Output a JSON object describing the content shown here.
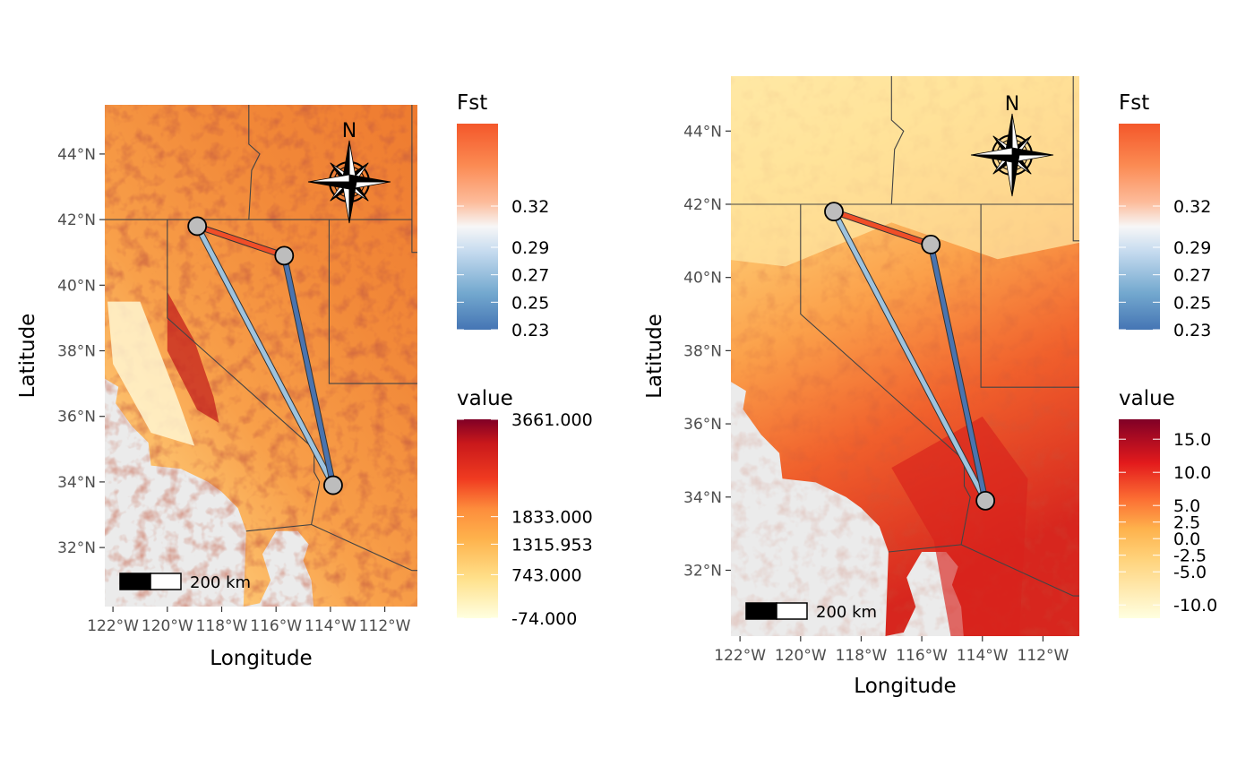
{
  "panels": [
    {
      "id": "elevation",
      "x_label": "Longitude",
      "y_label": "Latitude",
      "lon_range": [
        -122.3,
        -110.8
      ],
      "lat_range": [
        30.2,
        45.5
      ],
      "x_ticks": [
        "122°W",
        "120°W",
        "118°W",
        "116°W",
        "114°W",
        "112°W"
      ],
      "x_tick_values": [
        -122,
        -120,
        -118,
        -116,
        -114,
        -112
      ],
      "y_ticks": [
        "32°N",
        "34°N",
        "36°N",
        "38°N",
        "40°N",
        "42°N",
        "44°N"
      ],
      "y_tick_values": [
        32,
        34,
        36,
        38,
        40,
        42,
        44
      ],
      "scale_bar_label": "200 km",
      "north_label": "N",
      "legend_fst": {
        "title": "Fst",
        "ticks": [
          "0.32",
          "0.29",
          "0.27",
          "0.25",
          "0.23"
        ],
        "tick_values": [
          0.32,
          0.29,
          0.27,
          0.25,
          0.23
        ],
        "range": [
          0.23,
          0.38
        ]
      },
      "legend_value": {
        "title": "value",
        "ticks": [
          "3661.000",
          "1833.000",
          "1315.953",
          "743.000",
          "-74.000"
        ],
        "tick_values": [
          3661,
          1833,
          1315.953,
          743,
          -74
        ],
        "range": [
          -74,
          3661
        ]
      },
      "raster_style": "elevation"
    },
    {
      "id": "temperature",
      "x_label": "Longitude",
      "y_label": "Latitude",
      "lon_range": [
        -122.3,
        -110.8
      ],
      "lat_range": [
        30.2,
        45.5
      ],
      "x_ticks": [
        "122°W",
        "120°W",
        "118°W",
        "116°W",
        "114°W",
        "112°W"
      ],
      "x_tick_values": [
        -122,
        -120,
        -118,
        -116,
        -114,
        -112
      ],
      "y_ticks": [
        "32°N",
        "34°N",
        "36°N",
        "38°N",
        "40°N",
        "42°N",
        "44°N"
      ],
      "y_tick_values": [
        32,
        34,
        36,
        38,
        40,
        42,
        44
      ],
      "scale_bar_label": "200 km",
      "north_label": "N",
      "legend_fst": {
        "title": "Fst",
        "ticks": [
          "0.32",
          "0.29",
          "0.27",
          "0.25",
          "0.23"
        ],
        "tick_values": [
          0.32,
          0.29,
          0.27,
          0.25,
          0.23
        ],
        "range": [
          0.23,
          0.38
        ]
      },
      "legend_value": {
        "title": "value",
        "ticks": [
          "15.0",
          "10.0",
          "5.0",
          "2.5",
          "0.0",
          "-2.5",
          "-5.0",
          "-10.0"
        ],
        "tick_values": [
          15,
          10,
          5,
          2.5,
          0,
          -2.5,
          -5,
          -10
        ],
        "range": [
          -12,
          18
        ]
      },
      "raster_style": "temperature"
    }
  ],
  "sites": [
    {
      "lon": -118.9,
      "lat": 41.8
    },
    {
      "lon": -115.7,
      "lat": 40.9
    },
    {
      "lon": -113.9,
      "lat": 33.9
    }
  ],
  "links": [
    {
      "from": 0,
      "to": 1,
      "fst": 0.36,
      "color": "#F04E28"
    },
    {
      "from": 0,
      "to": 2,
      "fst": 0.29,
      "color": "#9EC3DE"
    },
    {
      "from": 1,
      "to": 2,
      "fst": 0.23,
      "color": "#4A74AF"
    }
  ],
  "colors": {
    "fst_low": "#4575B4",
    "fst_mid": "#F7F7F7",
    "fst_high": "#F4572A",
    "value_low": "#FFFFE0",
    "value_high": "#800026",
    "ocean": "#EBEBEB",
    "site_fill": "#BDBDBD"
  }
}
